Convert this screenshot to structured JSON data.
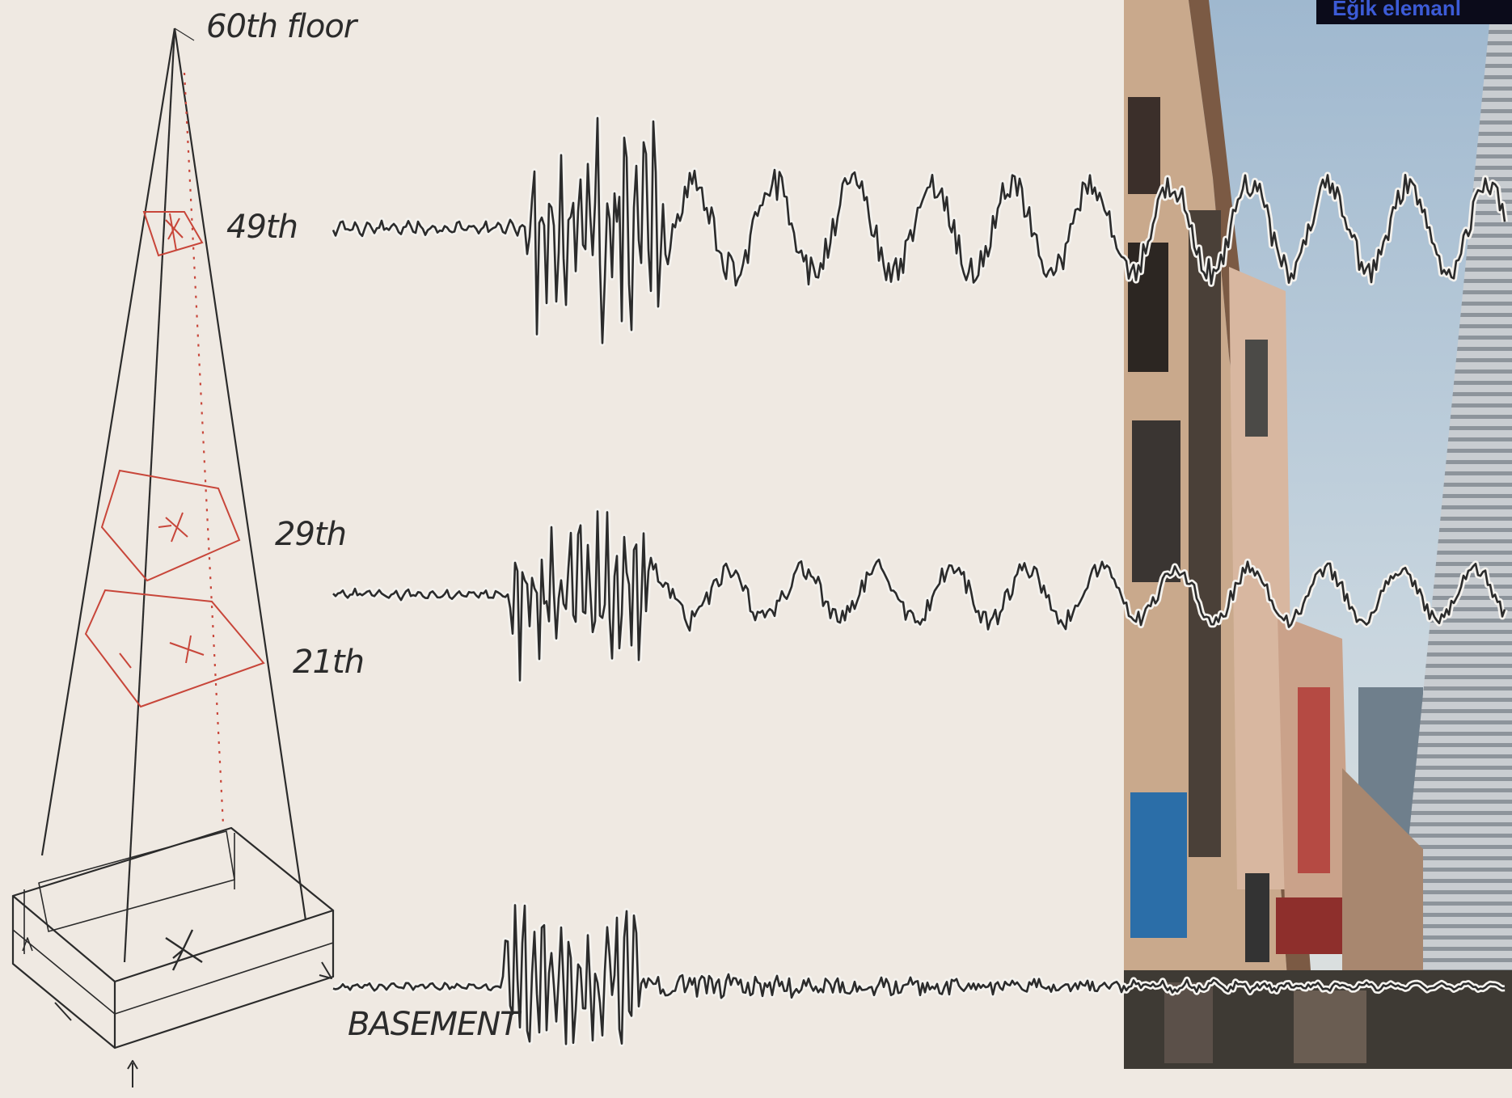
{
  "labels": {
    "top_floor": "60th floor",
    "floor_49": "49th",
    "floor_29": "29th",
    "floor_21": "21th",
    "basement": "BASEMENT"
  },
  "banner": {
    "text": "Eğik elemanl"
  },
  "colors": {
    "background": "#efe9e2",
    "ink": "#2b2b2b",
    "sensor_red": "#c8463a",
    "banner_bg": "#0b0b1a",
    "banner_text": "#3c5bd6"
  }
}
